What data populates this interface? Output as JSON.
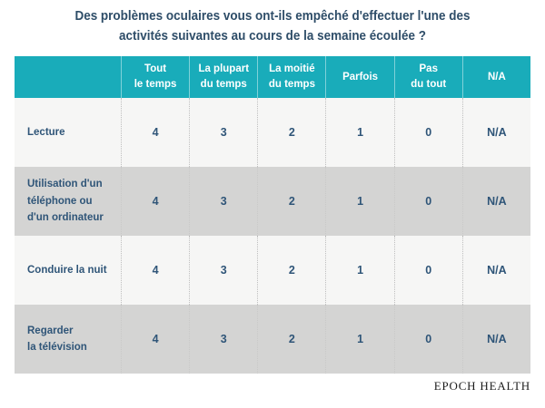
{
  "title": {
    "text": "Des problèmes oculaires vous ont-ils empêché d'effectuer l'une des\nactivités suivantes au cours de la semaine écoulée ?"
  },
  "table": {
    "columns": [
      "Tout\nle temps",
      "La plupart\ndu temps",
      "La moitié\ndu temps",
      "Parfois",
      "Pas\ndu tout",
      "N/A"
    ],
    "rows": [
      {
        "label": "Lecture",
        "values": [
          "4",
          "3",
          "2",
          "1",
          "0",
          "N/A"
        ]
      },
      {
        "label": "Utilisation d'un\ntéléphone ou\nd'un ordinateur",
        "values": [
          "4",
          "3",
          "2",
          "1",
          "0",
          "N/A"
        ]
      },
      {
        "label": "Conduire la nuit",
        "values": [
          "4",
          "3",
          "2",
          "1",
          "0",
          "N/A"
        ]
      },
      {
        "label": "Regarder\nla télévision",
        "values": [
          "4",
          "3",
          "2",
          "1",
          "0",
          "N/A"
        ]
      }
    ]
  },
  "footer": {
    "brand": "EPOCH HEALTH"
  },
  "colors": {
    "teal": "#19acba",
    "title-navy": "#2e4d68",
    "cell-navy": "#2f5578",
    "row-light": "#f6f6f5",
    "row-gray": "#d4d4d3",
    "brand-dark": "#1c1c1c"
  },
  "chart_data": {
    "type": "table",
    "title": "Des problèmes oculaires vous ont-ils empêché d'effectuer l'une des activités suivantes au cours de la semaine écoulée ?",
    "columns": [
      "",
      "Tout le temps",
      "La plupart du temps",
      "La moitié du temps",
      "Parfois",
      "Pas du tout",
      "N/A"
    ],
    "rows": [
      [
        "Lecture",
        "4",
        "3",
        "2",
        "1",
        "0",
        "N/A"
      ],
      [
        "Utilisation d'un téléphone ou d'un ordinateur",
        "4",
        "3",
        "2",
        "1",
        "0",
        "N/A"
      ],
      [
        "Conduire la nuit",
        "4",
        "3",
        "2",
        "1",
        "0",
        "N/A"
      ],
      [
        "Regarder la télévision",
        "4",
        "3",
        "2",
        "1",
        "0",
        "N/A"
      ]
    ],
    "source": "EPOCH HEALTH",
    "layout": {
      "header_background": "#19acba",
      "alternating_rows": true,
      "grid": "dotted-vertical"
    }
  }
}
